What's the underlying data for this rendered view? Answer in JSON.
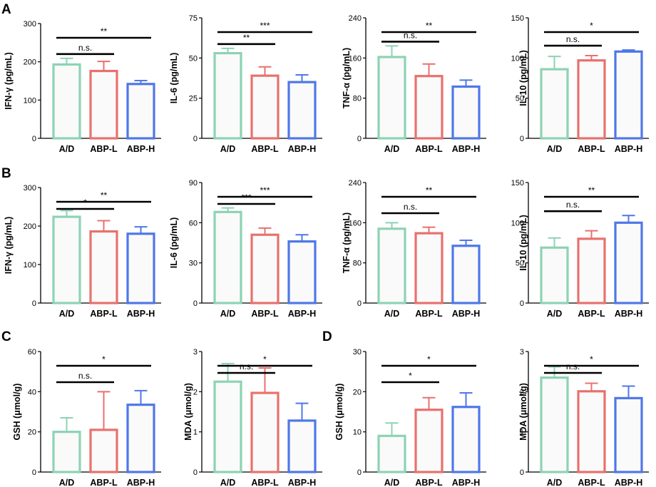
{
  "panel_letters": [
    "A",
    "B",
    "C",
    "D"
  ],
  "colors": {
    "A/D": "#8dd3b4",
    "ABP-L": "#e8716d",
    "ABP-H": "#4f77e8",
    "axis": "#000000",
    "bar_fill": "#fafafa"
  },
  "chart_data": [
    {
      "panel": "A",
      "type": "bar",
      "title": "",
      "categories": [
        "A/D",
        "ABP-L",
        "ABP-H"
      ],
      "values": [
        193,
        176,
        142
      ],
      "errors": [
        16,
        25,
        9
      ],
      "ylabel": "IFN-γ (pg/mL)",
      "ylim": [
        0,
        300
      ],
      "yticks": [
        "0",
        "100",
        "200",
        "300"
      ],
      "significance": [
        {
          "from": 0,
          "to": 1,
          "label": "n.s."
        },
        {
          "from": 0,
          "to": 2,
          "label": "**"
        }
      ]
    },
    {
      "panel": "A",
      "type": "bar",
      "title": "",
      "categories": [
        "A/D",
        "ABP-L",
        "ABP-H"
      ],
      "values": [
        53,
        39,
        35
      ],
      "errors": [
        3,
        5.5,
        4.5
      ],
      "ylabel": "IL-6 (pg/mL)",
      "ylim": [
        0,
        75
      ],
      "yticks": [
        "0",
        "25",
        "50",
        "75"
      ],
      "significance": [
        {
          "from": 0,
          "to": 1,
          "label": "**"
        },
        {
          "from": 0,
          "to": 2,
          "label": "***"
        }
      ]
    },
    {
      "panel": "A",
      "type": "bar",
      "title": "",
      "categories": [
        "A/D",
        "ABP-L",
        "ABP-H"
      ],
      "values": [
        162,
        124,
        103
      ],
      "errors": [
        22,
        24,
        13
      ],
      "ylabel": "TNF-α (pg/mL)",
      "ylim": [
        0,
        240
      ],
      "yticks": [
        "0",
        "80",
        "160",
        "240"
      ],
      "significance": [
        {
          "from": 0,
          "to": 1,
          "label": "n.s."
        },
        {
          "from": 0,
          "to": 2,
          "label": "**"
        }
      ]
    },
    {
      "panel": "A",
      "type": "bar",
      "title": "",
      "categories": [
        "A/D",
        "ABP-L",
        "ABP-H"
      ],
      "values": [
        86,
        97,
        108
      ],
      "errors": [
        16,
        6,
        2
      ],
      "ylabel": "IL-10 (pg/mL)",
      "ylim": [
        0,
        150
      ],
      "yticks": [
        "0",
        "50",
        "100",
        "150"
      ],
      "significance": [
        {
          "from": 0,
          "to": 1,
          "label": "n.s."
        },
        {
          "from": 0,
          "to": 2,
          "label": "*"
        }
      ]
    },
    {
      "panel": "B",
      "type": "bar",
      "title": "",
      "categories": [
        "A/D",
        "ABP-L",
        "ABP-H"
      ],
      "values": [
        224,
        186,
        180
      ],
      "errors": [
        16,
        28,
        18
      ],
      "ylabel": "IFN-γ (pg/mL)",
      "ylim": [
        0,
        300
      ],
      "yticks": [
        "0",
        "100",
        "200",
        "300"
      ],
      "significance": [
        {
          "from": 0,
          "to": 1,
          "label": "*"
        },
        {
          "from": 0,
          "to": 2,
          "label": "**"
        }
      ]
    },
    {
      "panel": "B",
      "type": "bar",
      "title": "",
      "categories": [
        "A/D",
        "ABP-L",
        "ABP-H"
      ],
      "values": [
        68,
        51,
        46
      ],
      "errors": [
        3,
        5,
        5
      ],
      "ylabel": "IL-6 (pg/mL)",
      "ylim": [
        0,
        90
      ],
      "yticks": [
        "0",
        "30",
        "60",
        "90"
      ],
      "significance": [
        {
          "from": 0,
          "to": 1,
          "label": "***"
        },
        {
          "from": 0,
          "to": 2,
          "label": "***"
        }
      ]
    },
    {
      "panel": "B",
      "type": "bar",
      "title": "",
      "categories": [
        "A/D",
        "ABP-L",
        "ABP-H"
      ],
      "values": [
        148,
        139,
        114
      ],
      "errors": [
        12,
        12,
        11
      ],
      "ylabel": "TNF-α (pg/mL)",
      "ylim": [
        0,
        240
      ],
      "yticks": [
        "0",
        "80",
        "160",
        "240"
      ],
      "significance": [
        {
          "from": 0,
          "to": 1,
          "label": "n.s."
        },
        {
          "from": 0,
          "to": 2,
          "label": "**"
        }
      ]
    },
    {
      "panel": "B",
      "type": "bar",
      "title": "",
      "categories": [
        "A/D",
        "ABP-L",
        "ABP-H"
      ],
      "values": [
        69,
        80,
        100
      ],
      "errors": [
        12,
        10,
        9
      ],
      "ylabel": "IL-10 (pg/mL)",
      "ylim": [
        0,
        150
      ],
      "yticks": [
        "0",
        "50",
        "100",
        "150"
      ],
      "significance": [
        {
          "from": 0,
          "to": 1,
          "label": "n.s."
        },
        {
          "from": 0,
          "to": 2,
          "label": "**"
        }
      ]
    },
    {
      "panel": "C",
      "type": "bar",
      "title": "",
      "categories": [
        "A/D",
        "ABP-L",
        "ABP-H"
      ],
      "values": [
        20,
        21,
        33.5
      ],
      "errors": [
        7,
        19,
        7
      ],
      "ylabel": "GSH (μmol/g)",
      "ylim": [
        0,
        60
      ],
      "yticks": [
        "0",
        "20",
        "40",
        "60"
      ],
      "significance": [
        {
          "from": 0,
          "to": 1,
          "label": "n.s."
        },
        {
          "from": 0,
          "to": 2,
          "label": "*"
        }
      ]
    },
    {
      "panel": "C",
      "type": "bar",
      "title": "",
      "categories": [
        "A/D",
        "ABP-L",
        "ABP-H"
      ],
      "values": [
        2.25,
        1.97,
        1.28
      ],
      "errors": [
        0.45,
        0.62,
        0.43
      ],
      "ylabel": "MDA (μmol/g)",
      "ylim": [
        0,
        3
      ],
      "yticks": [
        "0",
        "1",
        "2",
        "3"
      ],
      "significance": [
        {
          "from": 0,
          "to": 1,
          "label": "n.s."
        },
        {
          "from": 0,
          "to": 2,
          "label": "*"
        }
      ]
    },
    {
      "panel": "D",
      "type": "bar",
      "title": "",
      "categories": [
        "A/D",
        "ABP-L",
        "ABP-H"
      ],
      "values": [
        9,
        15.5,
        16.2
      ],
      "errors": [
        3.2,
        3,
        3.5
      ],
      "ylabel": "GSH (μmol/g)",
      "ylim": [
        0,
        30
      ],
      "yticks": [
        "0",
        "10",
        "20",
        "30"
      ],
      "significance": [
        {
          "from": 0,
          "to": 1,
          "label": "*"
        },
        {
          "from": 0,
          "to": 2,
          "label": "*"
        }
      ]
    },
    {
      "panel": "D",
      "type": "bar",
      "title": "",
      "categories": [
        "A/D",
        "ABP-L",
        "ABP-H"
      ],
      "values": [
        2.35,
        2.01,
        1.84
      ],
      "errors": [
        0.27,
        0.2,
        0.3
      ],
      "ylabel": "MDA (μmol/g)",
      "ylim": [
        0,
        3
      ],
      "yticks": [
        "0",
        "1",
        "2",
        "3"
      ],
      "significance": [
        {
          "from": 0,
          "to": 1,
          "label": "n.s."
        },
        {
          "from": 0,
          "to": 2,
          "label": "*"
        }
      ]
    }
  ]
}
